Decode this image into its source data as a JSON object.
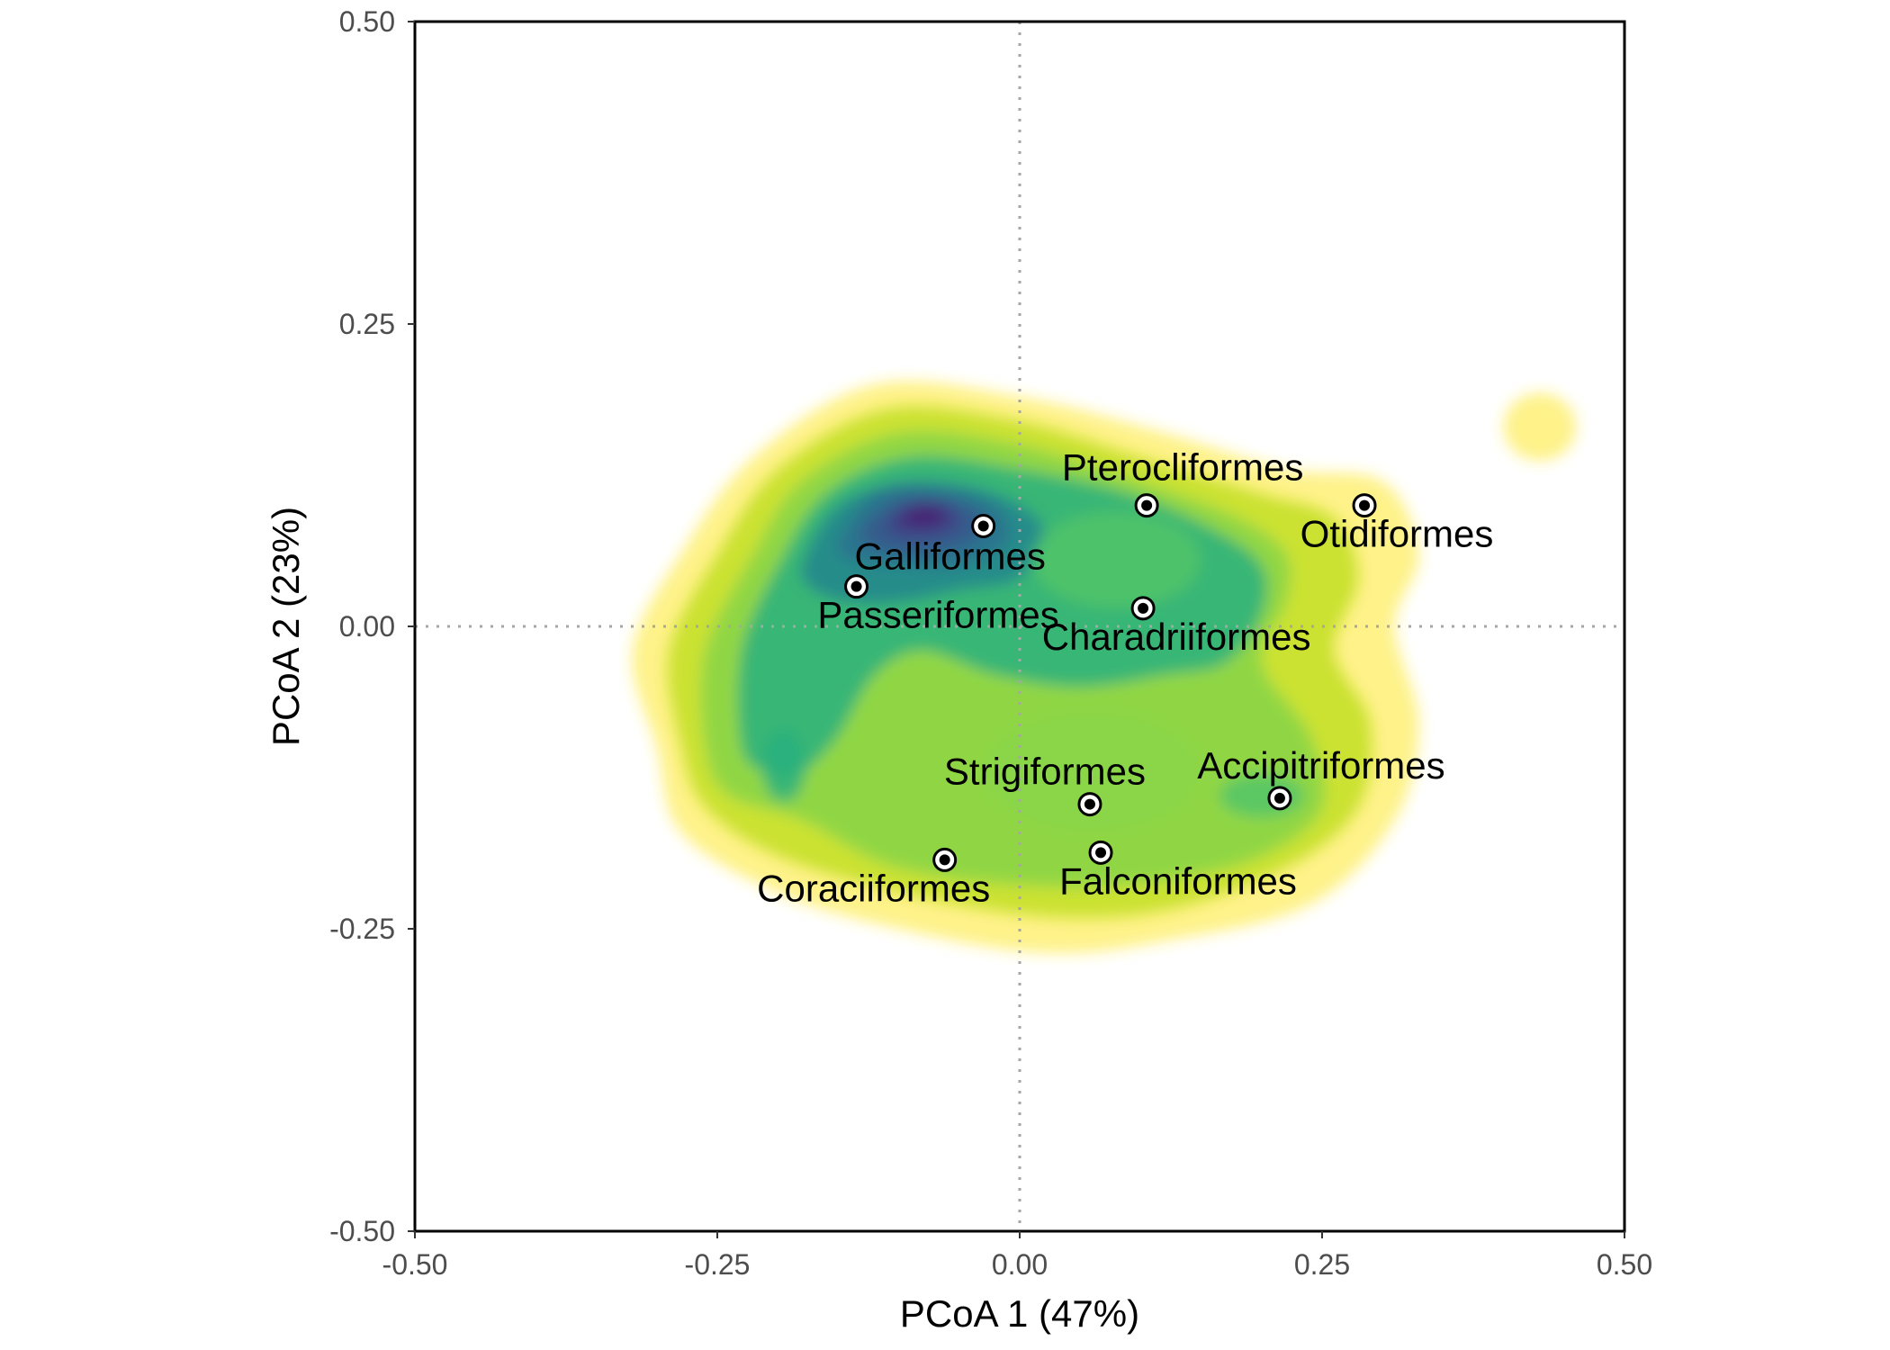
{
  "chart_data": {
    "type": "scatter",
    "xlabel": "PCoA 1 (47%)",
    "ylabel": "PCoA 2 (23%)",
    "xlim": [
      -0.5,
      0.5
    ],
    "ylim": [
      -0.5,
      0.5
    ],
    "x_ticks": [
      "-0.50",
      "-0.25",
      "0.00",
      "0.25",
      "0.50"
    ],
    "y_ticks": [
      "0.50",
      "0.25",
      "0.00",
      "-0.25",
      "-0.50"
    ],
    "reference_lines": {
      "x": 0,
      "y": 0,
      "style": "dotted"
    },
    "grid": false,
    "background": "2D density contours (viridis: yellow = low, purple = high)",
    "density_colors": [
      "#fde725",
      "#c2df23",
      "#86d549",
      "#52c569",
      "#2ab07f",
      "#1e9b8a",
      "#25858e",
      "#2d708e",
      "#38588c",
      "#433e85",
      "#482173"
    ],
    "points": [
      {
        "label": "Pterocliformes",
        "x": 0.105,
        "y": 0.1
      },
      {
        "label": "Otidiformes",
        "x": 0.285,
        "y": 0.1
      },
      {
        "label": "Galliformes",
        "x": -0.03,
        "y": 0.083
      },
      {
        "label": "Passeriformes",
        "x": -0.135,
        "y": 0.033
      },
      {
        "label": "Charadriiformes",
        "x": 0.102,
        "y": 0.015
      },
      {
        "label": "Strigiformes",
        "x": 0.058,
        "y": -0.147
      },
      {
        "label": "Accipitriformes",
        "x": 0.215,
        "y": -0.142
      },
      {
        "label": "Falconiformes",
        "x": 0.067,
        "y": -0.187
      },
      {
        "label": "Coraciiformes",
        "x": -0.062,
        "y": -0.193
      }
    ]
  }
}
